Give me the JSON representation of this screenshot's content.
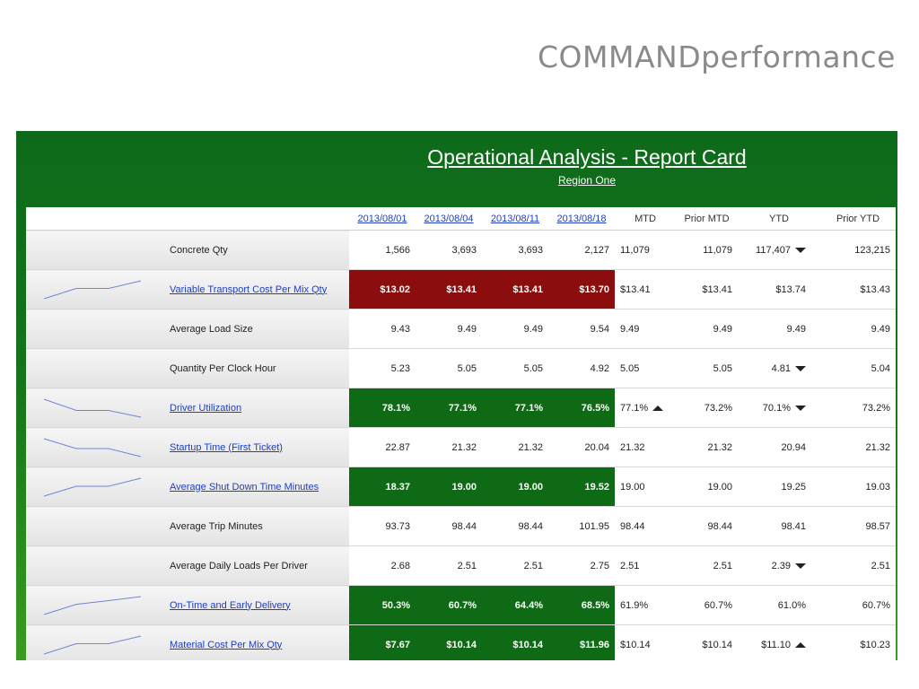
{
  "brand": "COMMANDperformance",
  "report": {
    "title": "Operational Analysis - Report Card",
    "subtitle": "Region One"
  },
  "columns": {
    "dates": [
      "2013/08/01",
      "2013/08/04",
      "2013/08/11",
      "2013/08/18"
    ],
    "mtd": "MTD",
    "prior_mtd": "Prior MTD",
    "ytd": "YTD",
    "prior_ytd": "Prior YTD"
  },
  "colors": {
    "panel_green": "#15761c",
    "cell_red": "#8b0d0d",
    "cell_green": "#0f6a16",
    "link_blue": "#1f3fbf",
    "sparkline": "#6f86d6"
  },
  "rows": [
    {
      "name": "Concrete Qty",
      "link": false,
      "spark": null,
      "values": [
        "1,566",
        "3,693",
        "3,693",
        "2,127"
      ],
      "highlight": "none",
      "mtd": "11,079",
      "mtd_arrow": "",
      "prior_mtd": "11,079",
      "ytd": "117,407",
      "ytd_arrow": "down",
      "prior_ytd": "123,215"
    },
    {
      "name": "Variable Transport Cost Per Mix Qty",
      "link": true,
      "spark": [
        13.02,
        13.41,
        13.41,
        13.7
      ],
      "values": [
        "$13.02",
        "$13.41",
        "$13.41",
        "$13.70"
      ],
      "highlight": "red",
      "mtd": "$13.41",
      "mtd_arrow": "",
      "prior_mtd": "$13.41",
      "ytd": "$13.74",
      "ytd_arrow": "",
      "prior_ytd": "$13.43"
    },
    {
      "name": "Average Load Size",
      "link": false,
      "spark": null,
      "values": [
        "9.43",
        "9.49",
        "9.49",
        "9.54"
      ],
      "highlight": "none",
      "mtd": "9.49",
      "mtd_arrow": "",
      "prior_mtd": "9.49",
      "ytd": "9.49",
      "ytd_arrow": "",
      "prior_ytd": "9.49"
    },
    {
      "name": "Quantity Per Clock Hour",
      "link": false,
      "spark": null,
      "values": [
        "5.23",
        "5.05",
        "5.05",
        "4.92"
      ],
      "highlight": "none",
      "mtd": "5.05",
      "mtd_arrow": "",
      "prior_mtd": "5.05",
      "ytd": "4.81",
      "ytd_arrow": "down",
      "prior_ytd": "5.04"
    },
    {
      "name": "Driver Utilization",
      "link": true,
      "spark": [
        78.1,
        77.1,
        77.1,
        76.5
      ],
      "values": [
        "78.1%",
        "77.1%",
        "77.1%",
        "76.5%"
      ],
      "highlight": "green",
      "mtd": "77.1%",
      "mtd_arrow": "up",
      "prior_mtd": "73.2%",
      "ytd": "70.1%",
      "ytd_arrow": "down",
      "prior_ytd": "73.2%"
    },
    {
      "name": "Startup Time (First Ticket)",
      "link": true,
      "spark": [
        22.87,
        21.32,
        21.32,
        20.04
      ],
      "values": [
        "22.87",
        "21.32",
        "21.32",
        "20.04"
      ],
      "highlight": "none",
      "mtd": "21.32",
      "mtd_arrow": "",
      "prior_mtd": "21.32",
      "ytd": "20.94",
      "ytd_arrow": "",
      "prior_ytd": "21.32"
    },
    {
      "name": "Average Shut Down Time Minutes",
      "link": true,
      "spark": [
        18.37,
        19.0,
        19.0,
        19.52
      ],
      "values": [
        "18.37",
        "19.00",
        "19.00",
        "19.52"
      ],
      "highlight": "green",
      "mtd": "19.00",
      "mtd_arrow": "",
      "prior_mtd": "19.00",
      "ytd": "19.25",
      "ytd_arrow": "",
      "prior_ytd": "19.03"
    },
    {
      "name": "Average Trip Minutes",
      "link": false,
      "spark": null,
      "values": [
        "93.73",
        "98.44",
        "98.44",
        "101.95"
      ],
      "highlight": "none",
      "mtd": "98.44",
      "mtd_arrow": "",
      "prior_mtd": "98.44",
      "ytd": "98.41",
      "ytd_arrow": "",
      "prior_ytd": "98.57"
    },
    {
      "name": "Average Daily Loads Per Driver",
      "link": false,
      "spark": null,
      "values": [
        "2.68",
        "2.51",
        "2.51",
        "2.75"
      ],
      "highlight": "none",
      "mtd": "2.51",
      "mtd_arrow": "",
      "prior_mtd": "2.51",
      "ytd": "2.39",
      "ytd_arrow": "down",
      "prior_ytd": "2.51"
    },
    {
      "name": "On-Time and Early Delivery",
      "link": true,
      "spark": [
        50.3,
        60.7,
        64.4,
        68.5
      ],
      "values": [
        "50.3%",
        "60.7%",
        "64.4%",
        "68.5%"
      ],
      "highlight": "green",
      "mtd": "61.9%",
      "mtd_arrow": "",
      "prior_mtd": "60.7%",
      "ytd": "61.0%",
      "ytd_arrow": "",
      "prior_ytd": "60.7%"
    },
    {
      "name": "Material Cost Per Mix Qty",
      "link": true,
      "spark": [
        7.67,
        10.14,
        10.14,
        11.96
      ],
      "values": [
        "$7.67",
        "$10.14",
        "$10.14",
        "$11.96"
      ],
      "highlight": "green",
      "mtd": "$10.14",
      "mtd_arrow": "",
      "prior_mtd": "$10.14",
      "ytd": "$11.10",
      "ytd_arrow": "up",
      "prior_ytd": "$10.23"
    }
  ]
}
